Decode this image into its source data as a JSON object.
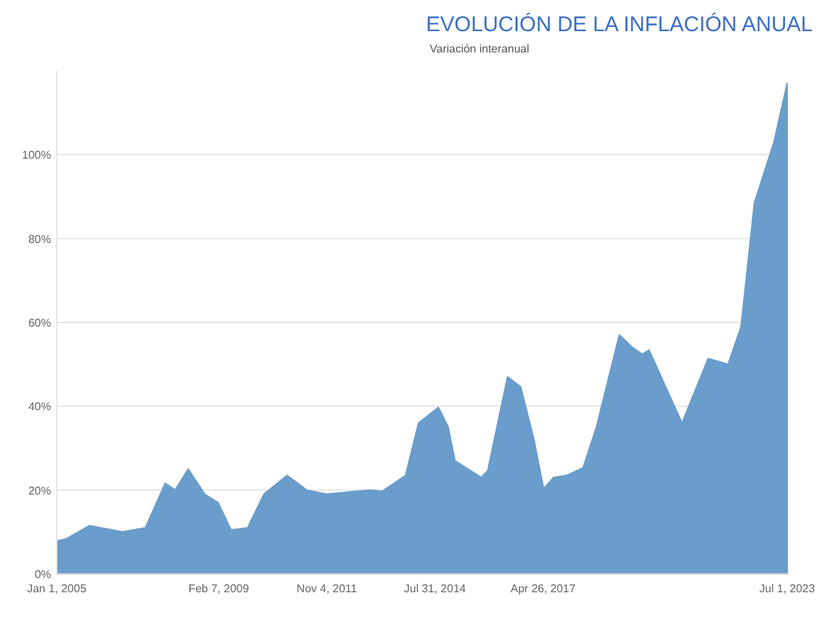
{
  "chart_data": {
    "type": "area",
    "title": "EVOLUCIÓN DE LA INFLACIÓN ANUAL",
    "subtitle": "Variación interanual",
    "x": [
      "2005-01",
      "2005-04",
      "2005-11",
      "2006-09",
      "2007-04",
      "2007-10",
      "2008-01",
      "2008-05",
      "2008-10",
      "2009-02",
      "2009-06",
      "2009-11",
      "2010-04",
      "2010-11",
      "2011-05",
      "2011-11",
      "2012-12",
      "2013-04",
      "2013-11",
      "2014-03",
      "2014-09",
      "2014-12",
      "2015-02",
      "2015-10",
      "2015-12",
      "2016-06",
      "2016-10",
      "2017-02",
      "2017-05",
      "2017-08",
      "2017-12",
      "2018-05",
      "2018-09",
      "2019-04",
      "2019-08",
      "2019-11",
      "2020-01",
      "2020-07",
      "2020-11",
      "2021-07",
      "2022-01",
      "2022-05",
      "2022-09",
      "2023-03",
      "2023-07"
    ],
    "series": [
      {
        "color": "#6a9dcb",
        "values": [
          7.8,
          8.4,
          11.5,
          10,
          11,
          21.6,
          20,
          25,
          19,
          17,
          10.5,
          11,
          19,
          23.5,
          20,
          19,
          20,
          19.7,
          23.5,
          36,
          39.7,
          35,
          27,
          23,
          24.6,
          47,
          44.6,
          32,
          20.3,
          23,
          23.5,
          25.3,
          35,
          57,
          54,
          52.4,
          53.4,
          43,
          36,
          51.4,
          50,
          59,
          88.5,
          103,
          117
        ]
      }
    ],
    "xlim": [
      "2005-01",
      "2023-07"
    ],
    "xticks": [
      {
        "value": "2005-01-01",
        "label": "Jan 1, 2005"
      },
      {
        "value": "2009-02-07",
        "label": "Feb 7, 2009"
      },
      {
        "value": "2011-11-04",
        "label": "Nov 4, 2011"
      },
      {
        "value": "2014-07-31",
        "label": "Jul 31, 2014"
      },
      {
        "value": "2017-04-26",
        "label": "Apr 26, 2017"
      },
      {
        "value": "2023-07-01",
        "label": "Jul 1, 2023"
      }
    ],
    "ylim": [
      0,
      120
    ],
    "yticks": [
      {
        "value": 0,
        "label": "0%"
      },
      {
        "value": 20,
        "label": "20%"
      },
      {
        "value": 40,
        "label": "40%"
      },
      {
        "value": 60,
        "label": "60%"
      },
      {
        "value": 80,
        "label": "80%"
      },
      {
        "value": 100,
        "label": "100%"
      }
    ],
    "grid": "y"
  }
}
